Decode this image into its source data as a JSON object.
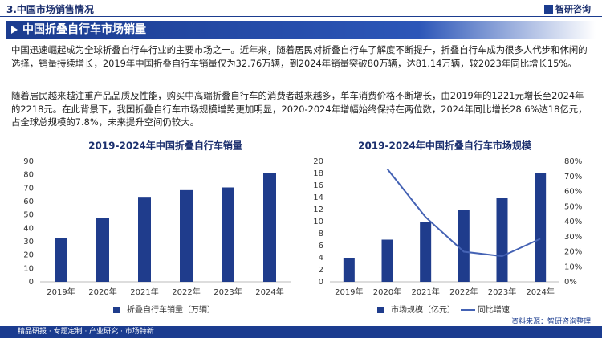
{
  "header": {
    "section": "3.中国市场销售情况",
    "logo": "智研咨询",
    "title": "中国折叠自行车市场销量"
  },
  "paragraphs": [
    "中国迅速崛起成为全球折叠自行车行业的主要市场之一。近年来，随着居民对折叠自行车了解度不断提升，折叠自行车成为很多人代步和休闲的选择，销量持续增长，2019年中国折叠自行车销量仅为32.76万辆，到2024年销量突破80万辆，达81.14万辆，较2023年同比增长15%。",
    "随着居民越来越注重产品品质及性能，购买中高端折叠自行车的消费者越来越多，单车消费价格不断增长，由2019年的1221元增长至2024年的2218元。在此背景下，我国折叠自行车市场规模增势更加明显，2020-2024年增幅始终保持在两位数，2024年同比增长28.6%达18亿元，占全球总规模的7.8%，未来提升空间仍较大。"
  ],
  "chart_data": [
    {
      "type": "bar",
      "title": "2019-2024年中国折叠自行车销量",
      "categories": [
        "2019年",
        "2020年",
        "2021年",
        "2022年",
        "2023年",
        "2024年"
      ],
      "series": [
        {
          "name": "折叠自行车销量（万辆）",
          "color": "#1f3c8c",
          "values": [
            32.76,
            48,
            63.5,
            68.5,
            70.5,
            81.14
          ]
        }
      ],
      "ylim": [
        0,
        90
      ],
      "yticks": [
        0,
        10,
        20,
        30,
        40,
        50,
        60,
        70,
        80,
        90
      ],
      "grid": false
    },
    {
      "type": "combo",
      "title": "2019-2024年中国折叠自行车市场规模",
      "categories": [
        "2019年",
        "2020年",
        "2021年",
        "2022年",
        "2023年",
        "2024年"
      ],
      "series": [
        {
          "name": "市场规模（亿元）",
          "color": "#1f3c8c",
          "values": [
            4,
            7,
            10,
            12,
            14,
            18
          ]
        },
        {
          "name": "同比增速",
          "color": "#4462b4",
          "axis": "y2",
          "values": [
            null,
            75,
            43,
            20,
            17,
            28.6
          ]
        }
      ],
      "ylim": [
        0,
        20
      ],
      "yticks": [
        0,
        2,
        4,
        6,
        8,
        10,
        12,
        14,
        16,
        18,
        20
      ],
      "y2lim": [
        0,
        80
      ],
      "y2ticks": [
        {
          "value": 0,
          "label": "0%"
        },
        {
          "value": 10,
          "label": "10%"
        },
        {
          "value": 20,
          "label": "20%"
        },
        {
          "value": 30,
          "label": "30%"
        },
        {
          "value": 40,
          "label": "40%"
        },
        {
          "value": 50,
          "label": "50%"
        },
        {
          "value": 60,
          "label": "60%"
        },
        {
          "value": 70,
          "label": "70%"
        },
        {
          "value": 80,
          "label": "80%"
        }
      ],
      "grid": false
    }
  ],
  "source": "资料来源：智研咨询整理",
  "footer": "精品研报 · 专题定制 · 产业研究 · 市场特新"
}
